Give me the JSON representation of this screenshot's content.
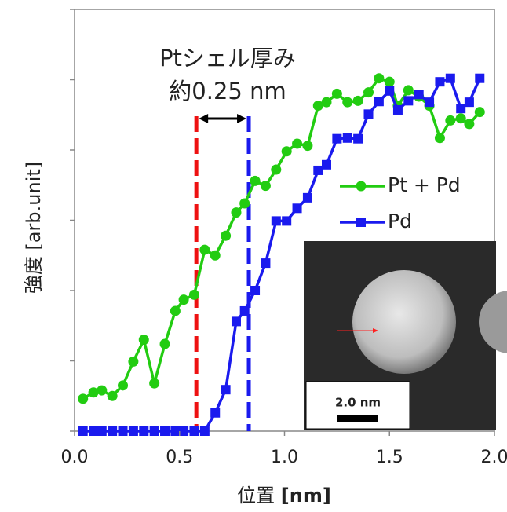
{
  "chart_data": {
    "type": "line",
    "annotation_title": "Ptシェル厚み",
    "annotation_value": "約0.25 nm",
    "xlabel": "位置",
    "xlabel_unit": "[nm]",
    "ylabel": "強度 [arb.unit]",
    "xlim": [
      0,
      2
    ],
    "ylim": [
      0,
      6
    ],
    "xticks": [
      {
        "value": 0,
        "label": "0.0"
      },
      0.5,
      {
        "value": 1,
        "label": "1.0"
      },
      1.5,
      {
        "value": 2,
        "label": "2.0"
      }
    ],
    "yticks": [
      0,
      1,
      2,
      3,
      4,
      5,
      6
    ],
    "x": [
      0.04,
      0.09,
      0.13,
      0.18,
      0.23,
      0.28,
      0.33,
      0.38,
      0.43,
      0.48,
      0.52,
      0.57,
      0.62,
      0.67,
      0.72,
      0.77,
      0.81,
      0.86,
      0.91,
      0.96,
      1.01,
      1.06,
      1.11,
      1.16,
      1.2,
      1.25,
      1.3,
      1.35,
      1.4,
      1.45,
      1.5,
      1.54,
      1.59,
      1.64,
      1.69,
      1.74,
      1.79,
      1.84,
      1.88,
      1.93
    ],
    "series": [
      {
        "name": "Pt + Pd",
        "color": "#22cc11",
        "marker": "circle",
        "values": [
          0.46,
          0.55,
          0.58,
          0.5,
          0.65,
          0.99,
          1.3,
          0.68,
          1.24,
          1.71,
          1.87,
          1.94,
          2.58,
          2.5,
          2.78,
          3.11,
          3.24,
          3.56,
          3.49,
          3.72,
          3.98,
          4.09,
          4.06,
          4.63,
          4.68,
          4.8,
          4.68,
          4.7,
          4.82,
          5.02,
          4.97,
          4.63,
          4.85,
          4.76,
          4.63,
          4.17,
          4.42,
          4.45,
          4.37,
          4.54
        ]
      },
      {
        "name": "Pd",
        "color": "#1a1aee",
        "marker": "square",
        "values": [
          0,
          0,
          0,
          0,
          0,
          0,
          0,
          0,
          0,
          0,
          0,
          0,
          0,
          0.26,
          0.59,
          1.56,
          1.71,
          2.0,
          2.39,
          2.99,
          2.99,
          3.17,
          3.32,
          3.71,
          3.79,
          4.16,
          4.17,
          4.16,
          4.51,
          4.69,
          4.84,
          4.57,
          4.7,
          4.79,
          4.68,
          4.97,
          5.02,
          4.59,
          4.68,
          5.02
        ]
      }
    ],
    "vlines": [
      {
        "x": 0.58,
        "color": "#ee1111"
      },
      {
        "x": 0.83,
        "color": "#1a1aee"
      }
    ],
    "inset_scale_label": "2.0 nm"
  }
}
